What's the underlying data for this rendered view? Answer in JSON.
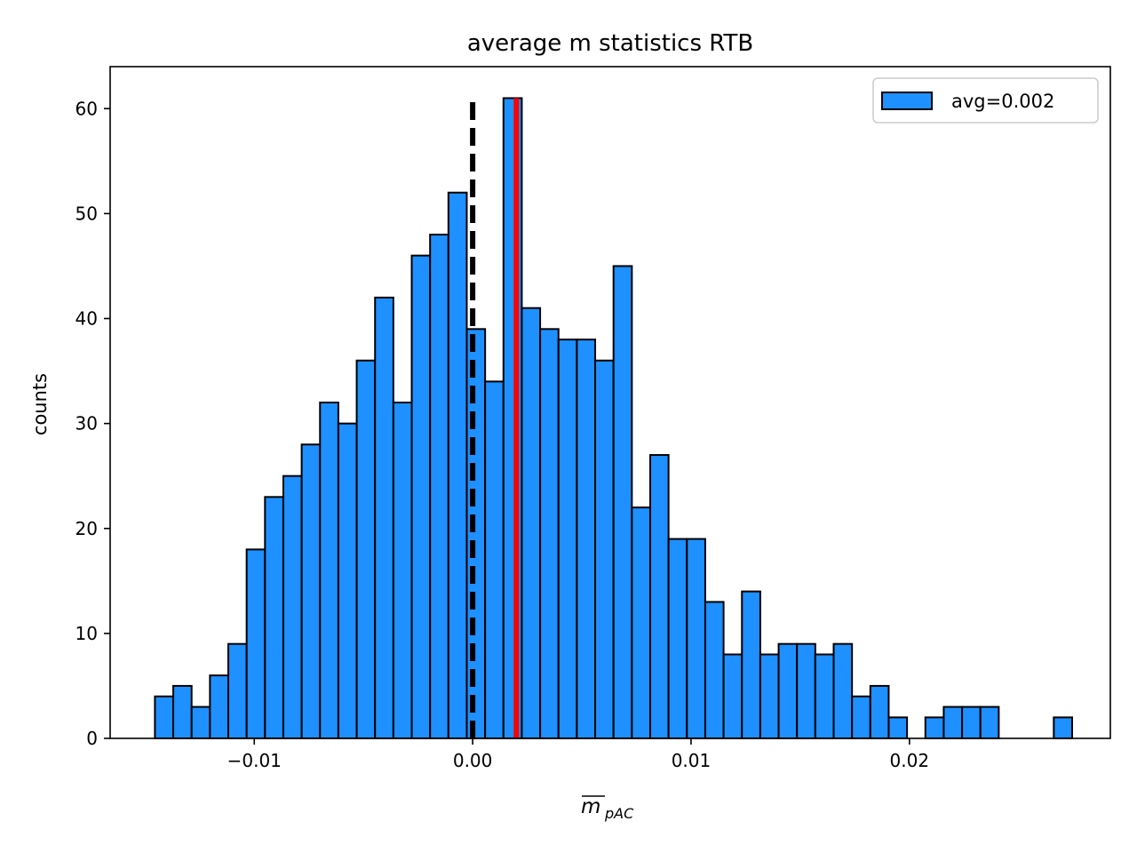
{
  "chart_data": {
    "type": "bar",
    "title": "average m statistics RTB",
    "xlabel_main": "m",
    "xlabel_sub": "pAC",
    "ylabel": "counts",
    "xlim": [
      -0.0166,
      0.0292
    ],
    "ylim": [
      0,
      64
    ],
    "x_ticks": [
      -0.01,
      0.0,
      0.01,
      0.02
    ],
    "x_tick_labels": [
      "−0.01",
      "0.00",
      "0.01",
      "0.02"
    ],
    "y_ticks": [
      0,
      10,
      20,
      30,
      40,
      50,
      60
    ],
    "y_tick_labels": [
      "0",
      "10",
      "20",
      "30",
      "40",
      "50",
      "60"
    ],
    "bin_start": -0.01455,
    "bin_width": 0.00084,
    "counts": [
      4,
      5,
      3,
      6,
      9,
      18,
      23,
      25,
      28,
      32,
      30,
      36,
      42,
      32,
      46,
      48,
      52,
      39,
      34,
      61,
      41,
      39,
      38,
      38,
      36,
      45,
      22,
      27,
      19,
      19,
      13,
      8,
      14,
      8,
      9,
      9,
      8,
      9,
      4,
      5,
      2,
      0,
      2,
      3,
      3,
      3,
      0,
      0,
      0,
      2
    ],
    "bar_color": "#1e90ff",
    "edge_color": "#000000",
    "reference_line": {
      "x": 0.0,
      "color": "#000000",
      "style": "dashed",
      "y_top": 61
    },
    "mean_line": {
      "x": 0.002,
      "color": "#ff0000",
      "style": "solid",
      "y_top": 61
    },
    "legend": {
      "label": "avg=0.002",
      "placement": "top-right"
    },
    "grid": false
  }
}
